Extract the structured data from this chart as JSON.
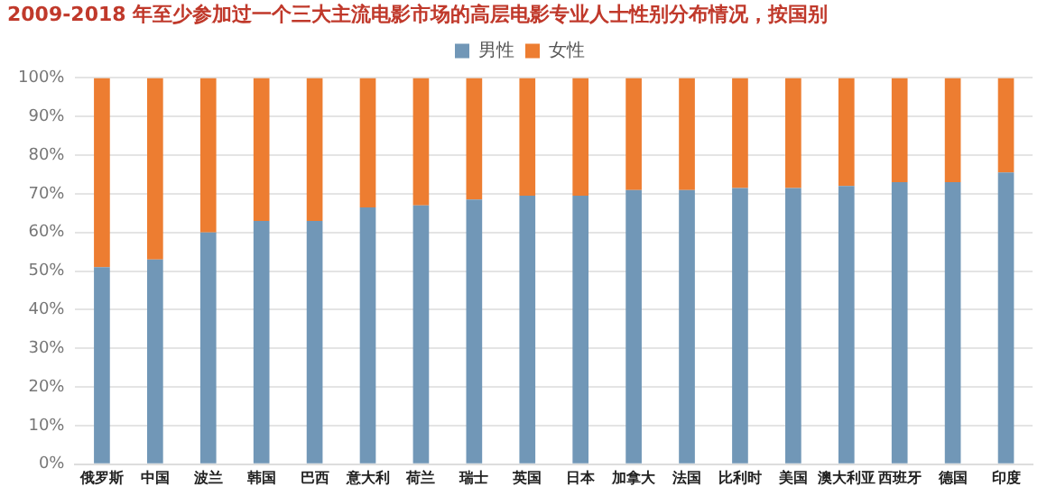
{
  "chart_data": {
    "type": "bar",
    "stacked": true,
    "title": "2009-2018 年至少参加过一个三大主流电影市场的高层电影专业人士性别分布情况，按国别",
    "categories": [
      "俄罗斯",
      "中国",
      "波兰",
      "韩国",
      "巴西",
      "意大利",
      "荷兰",
      "瑞士",
      "英国",
      "日本",
      "加拿大",
      "法国",
      "比利时",
      "美国",
      "澳大利亚",
      "西班牙",
      "德国",
      "印度"
    ],
    "series": [
      {
        "name": "男性",
        "color": "#7197b7",
        "values": [
          51,
          53,
          60,
          63,
          63,
          66.5,
          67,
          68.5,
          69.5,
          69.5,
          71,
          71,
          71.5,
          71.5,
          72,
          73,
          73,
          75.5
        ]
      },
      {
        "name": "女性",
        "color": "#ed7d31",
        "values": [
          49,
          47,
          40,
          37,
          37,
          33.5,
          33,
          31.5,
          30.5,
          30.5,
          29,
          29,
          28.5,
          28.5,
          28,
          27,
          27,
          24.5
        ]
      }
    ],
    "ylim": [
      0,
      100
    ],
    "yticks": [
      {
        "value": 0,
        "label": "0%"
      },
      {
        "value": 10,
        "label": "10%"
      },
      {
        "value": 20,
        "label": "20%"
      },
      {
        "value": 30,
        "label": "30%"
      },
      {
        "value": 40,
        "label": "40%"
      },
      {
        "value": 50,
        "label": "50%"
      },
      {
        "value": 60,
        "label": "60%"
      },
      {
        "value": 70,
        "label": "70%"
      },
      {
        "value": 80,
        "label": "80%"
      },
      {
        "value": 90,
        "label": "90%"
      },
      {
        "value": 100,
        "label": "100%"
      }
    ],
    "grid": "y",
    "legend": "top"
  }
}
